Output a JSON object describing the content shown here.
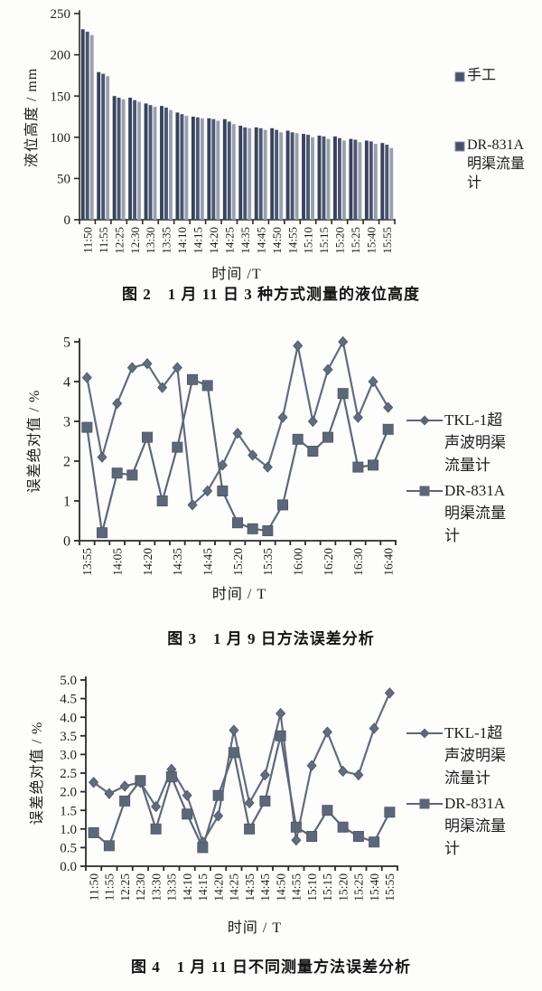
{
  "page": {
    "background": "#fdfdfc",
    "text_color": "#1e1e1e",
    "axis_color": "#2a2a2a",
    "line_series_color": "#5d6678",
    "bar_legend_color": "#49516a"
  },
  "chart_data": [
    {
      "type": "bar",
      "title": "图 2　1 月 11 日 3 种方式测量的液位高度",
      "xlabel": "时间 /T",
      "ylabel": "液位高度 / mm",
      "ylim": [
        0,
        250
      ],
      "y_tick_labels": [
        "0",
        "50",
        "100",
        "150",
        "200",
        "250"
      ],
      "grid": false,
      "legend_position": "right",
      "x_tick_label_rotation": -90,
      "categories": [
        "11:50",
        "11:55",
        "12:25",
        "12:30",
        "13:30",
        "13:35",
        "14:10",
        "14:15",
        "14:20",
        "14:25",
        "14:35",
        "14:45",
        "14:50",
        "14:55",
        "15:10",
        "15:15",
        "15:20",
        "15:25",
        "15:40",
        "15:55"
      ],
      "series": [
        {
          "name": "手工",
          "color": "#39425a",
          "values": [
            231,
            179,
            150,
            148,
            141,
            138,
            130,
            125,
            123,
            122,
            114,
            112,
            111,
            108,
            104,
            102,
            101,
            98,
            96,
            93
          ]
        },
        {
          "name": "",
          "color": "#4b5470",
          "values": [
            228,
            177,
            148,
            145,
            139,
            136,
            128,
            124,
            122,
            119,
            112,
            111,
            109,
            106,
            103,
            101,
            99,
            97,
            95,
            91
          ]
        },
        {
          "name": "DR-831A明渠流量计",
          "color": "#98a0b0",
          "values": [
            224,
            174,
            146,
            143,
            137,
            133,
            126,
            123,
            120,
            116,
            111,
            109,
            106,
            105,
            100,
            98,
            96,
            94,
            92,
            87
          ]
        }
      ],
      "legend": [
        {
          "label": "手工",
          "marker": "square"
        },
        {
          "label": "DR-831A明渠流量计",
          "marker": "square"
        }
      ]
    },
    {
      "type": "line",
      "title": "图 3　1 月 9 日方法误差分析",
      "xlabel": "时间 / T",
      "ylabel": "误差绝对值 / %",
      "ylim": [
        0,
        5
      ],
      "y_tick_labels": [
        "0",
        "1",
        "2",
        "3",
        "4",
        "5"
      ],
      "grid": false,
      "legend_position": "right",
      "x_tick_label_rotation": -90,
      "categories": [
        "13:55",
        "",
        "14:05",
        "",
        "14:20",
        "",
        "14:35",
        "",
        "14:45",
        "",
        "15:20",
        "",
        "15:35",
        "",
        "16:00",
        "",
        "16:20",
        "",
        "16:30",
        "",
        "16:40"
      ],
      "series": [
        {
          "name": "TKL-1超声波明渠流量计",
          "marker": "diamond",
          "color": "#636c7d",
          "values": [
            4.1,
            2.1,
            3.45,
            4.35,
            4.45,
            3.85,
            4.35,
            0.9,
            1.25,
            1.9,
            2.7,
            2.15,
            1.85,
            3.1,
            4.9,
            3.0,
            4.3,
            5.0,
            3.1,
            4.0,
            3.35
          ]
        },
        {
          "name": "DR-831A明渠流量计",
          "marker": "square",
          "color": "#5e6778",
          "values": [
            2.85,
            0.2,
            1.7,
            1.65,
            2.6,
            1.0,
            2.35,
            4.05,
            3.9,
            1.25,
            0.45,
            0.3,
            0.25,
            0.9,
            2.55,
            2.25,
            2.6,
            3.7,
            1.85,
            1.9,
            2.8
          ]
        }
      ],
      "legend": [
        {
          "label": "TKL-1超声波明渠流量计",
          "marker": "diamond"
        },
        {
          "label": "DR-831A明渠流量计",
          "marker": "square"
        }
      ]
    },
    {
      "type": "line",
      "title": "图 4　1 月 11 日不同测量方法误差分析",
      "xlabel": "时间 / T",
      "ylabel": "误差绝对值 / %",
      "ylim": [
        0,
        5
      ],
      "y_tick_labels": [
        "0.0",
        "0.5",
        "1.0",
        "1.5",
        "2.0",
        "2.5",
        "3.0",
        "3.5",
        "4.0",
        "4.5",
        "5.0"
      ],
      "grid": false,
      "legend_position": "right",
      "x_tick_label_rotation": -90,
      "categories": [
        "11:50",
        "11:55",
        "12:25",
        "12:30",
        "13:30",
        "13:35",
        "14:10",
        "14:15",
        "14:20",
        "14:25",
        "14:35",
        "14:45",
        "14:50",
        "14:55",
        "15:10",
        "15:15",
        "15:20",
        "15:25",
        "15:40",
        "15:55"
      ],
      "series": [
        {
          "name": "TKL-1超声波明渠流量计",
          "marker": "diamond",
          "color": "#636c7d",
          "values": [
            2.25,
            1.95,
            2.15,
            2.25,
            1.6,
            2.6,
            1.9,
            0.65,
            1.35,
            3.65,
            1.7,
            2.45,
            4.1,
            0.7,
            2.7,
            3.6,
            2.55,
            2.45,
            3.7,
            4.65
          ]
        },
        {
          "name": "DR-831A明渠流量计",
          "marker": "square",
          "color": "#5e6778",
          "values": [
            0.9,
            0.55,
            1.75,
            2.3,
            1.0,
            2.4,
            1.4,
            0.5,
            1.9,
            3.05,
            1.0,
            1.75,
            3.5,
            1.05,
            0.8,
            1.5,
            1.05,
            0.8,
            0.65,
            1.45
          ]
        }
      ],
      "legend": [
        {
          "label": "TKL-1超声波明渠流量计",
          "marker": "diamond"
        },
        {
          "label": "DR-831A明渠流量计",
          "marker": "square"
        }
      ]
    }
  ]
}
